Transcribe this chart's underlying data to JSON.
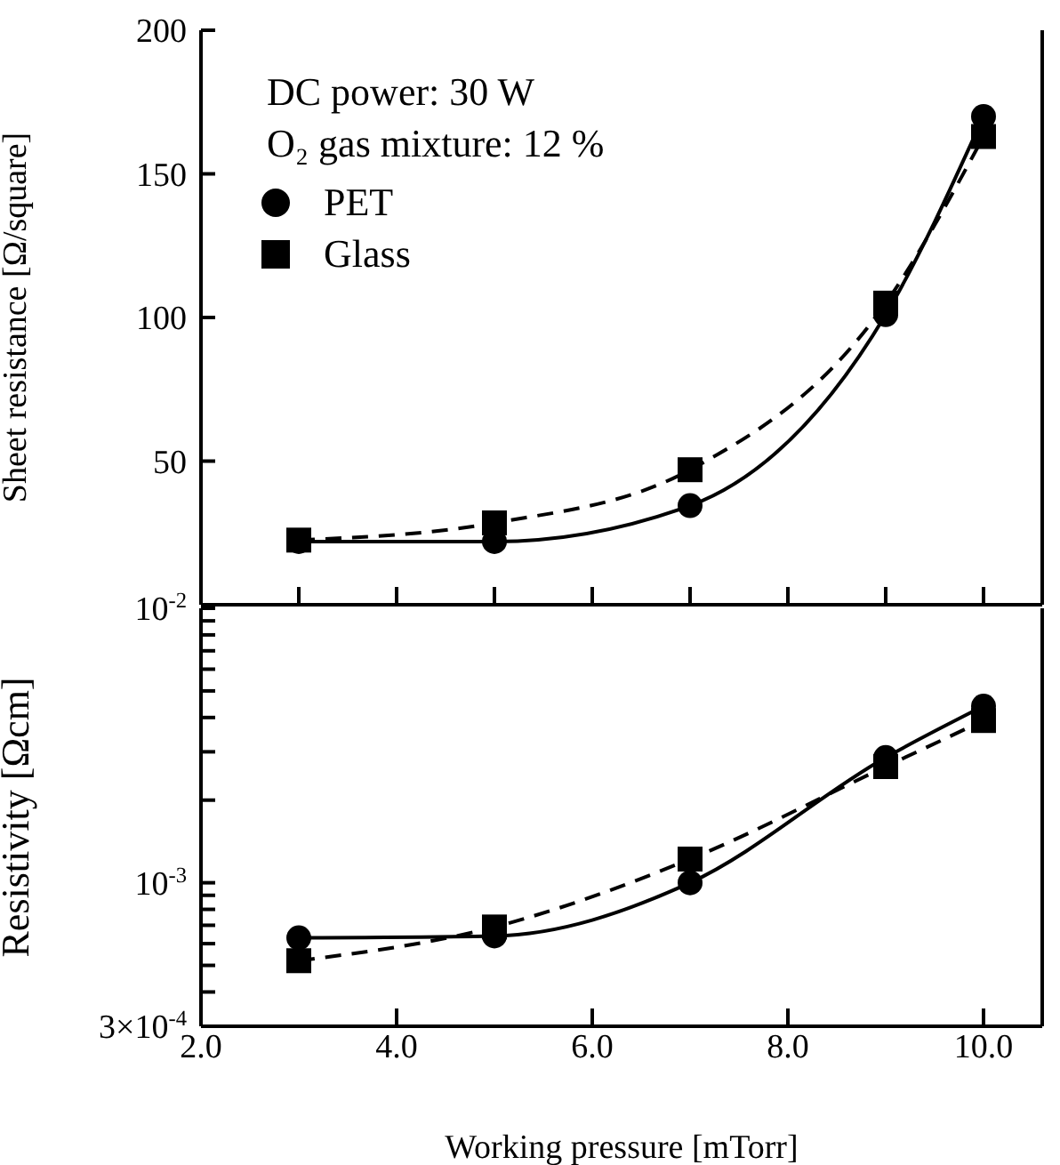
{
  "chart_data": [
    {
      "type": "line",
      "x": [
        3,
        5,
        7,
        9,
        10
      ],
      "xlim": [
        2,
        10.6
      ],
      "xticks": [
        {
          "value": 2,
          "label": null
        },
        {
          "value": 3,
          "label": null
        },
        {
          "value": 4,
          "label": null
        },
        {
          "value": 5,
          "label": null
        },
        {
          "value": 6,
          "label": null
        },
        {
          "value": 7,
          "label": null
        },
        {
          "value": 8,
          "label": null
        },
        {
          "value": 9,
          "label": null
        },
        {
          "value": 10,
          "label": null
        }
      ],
      "ylim": [
        0,
        200
      ],
      "yticks": [
        50,
        100,
        150,
        200
      ],
      "ylabel": "Sheet resistance [Ω/square]",
      "tick_labels": "y",
      "legend": "top left",
      "annotations": [
        "DC power: 30 W",
        "O₂ gas mixture: 12 %"
      ],
      "series": [
        {
          "name": "PET",
          "color": "#000000",
          "marker": "circle",
          "line_style": "solid",
          "values": [
            22,
            22,
            34.5,
            101,
            170
          ]
        },
        {
          "name": "Glass",
          "color": "#000000",
          "marker": "square",
          "line_style": "dashed",
          "values": [
            22.5,
            28.5,
            47,
            105,
            163
          ]
        }
      ]
    },
    {
      "type": "line",
      "x": [
        3,
        5,
        7,
        9,
        10
      ],
      "xlim": [
        2,
        10.6
      ],
      "xticks": [
        {
          "value": 2,
          "label": "2.0"
        },
        {
          "value": 4,
          "label": "4.0"
        },
        {
          "value": 6,
          "label": "6.0"
        },
        {
          "value": 8,
          "label": "8.0"
        },
        {
          "value": 10,
          "label": "10.0"
        }
      ],
      "ylim": [
        0.0003,
        0.01
      ],
      "log": true,
      "yticks": [
        {
          "value": 0.0003,
          "label": "3×10$^{-4}$"
        },
        {
          "value": 0.0004,
          "label": null
        },
        {
          "value": 0.0005,
          "label": null
        },
        {
          "value": 0.0006,
          "label": null
        },
        {
          "value": 0.0007,
          "label": null
        },
        {
          "value": 0.0008,
          "label": null
        },
        {
          "value": 0.0009,
          "label": null
        },
        {
          "value": 0.001,
          "label": "10$^{-3}$"
        },
        {
          "value": 0.002,
          "label": null
        },
        {
          "value": 0.003,
          "label": null
        },
        {
          "value": 0.004,
          "label": null
        },
        {
          "value": 0.005,
          "label": null
        },
        {
          "value": 0.006,
          "label": null
        },
        {
          "value": 0.007,
          "label": null
        },
        {
          "value": 0.008,
          "label": null
        },
        {
          "value": 0.009,
          "label": null
        },
        {
          "value": 0.01,
          "label": "10$^{-2}$"
        }
      ],
      "ylabel": "Resistivity [Ωcm]",
      "xlabel": "Working pressure [mTorr]",
      "series": [
        {
          "color": "#000000",
          "marker": "circle",
          "line_style": "solid",
          "values": [
            0.00063,
            0.00064,
            0.001,
            0.00286,
            0.0044
          ]
        },
        {
          "color": "#000000",
          "marker": "square",
          "line_style": "dashed",
          "values": [
            0.00052,
            0.00069,
            0.00122,
            0.00265,
            0.0039
          ]
        }
      ]
    }
  ]
}
